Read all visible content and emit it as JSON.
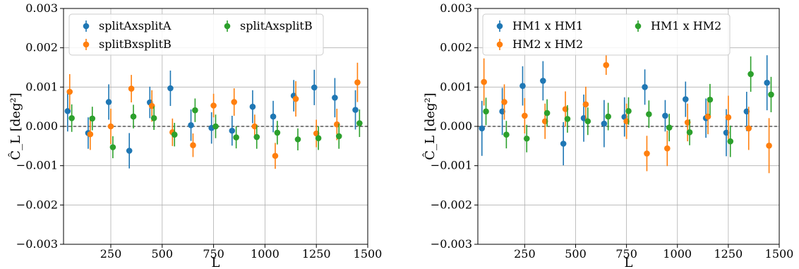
{
  "chart_data": [
    {
      "type": "scatter",
      "title": "",
      "xlabel": "L",
      "ylabel": "Ĉ_L [deg²]",
      "xlim": [
        20,
        1500
      ],
      "ylim": [
        -0.003,
        0.003
      ],
      "grid": true,
      "zero_line": true,
      "x_ticks": [
        250,
        500,
        750,
        1000,
        1250,
        1500
      ],
      "x_tick_labels": [
        "250",
        "500",
        "750",
        "1000",
        "1250",
        "1500"
      ],
      "y_ticks": [
        -0.003,
        -0.002,
        -0.001,
        0.0,
        0.001,
        0.002,
        0.003
      ],
      "y_tick_labels": [
        "−0.003",
        "−0.002",
        "−0.001",
        "0.000",
        "0.001",
        "0.002",
        "0.003"
      ],
      "legend_position": "top-left",
      "series": [
        {
          "name": "splitAxsplitA",
          "color": "#1f77b4",
          "x": [
            40,
            140,
            240,
            340,
            440,
            540,
            640,
            740,
            840,
            940,
            1040,
            1140,
            1240,
            1340,
            1440
          ],
          "y": [
            0.00039,
            -0.00017,
            0.00062,
            -0.00062,
            0.00061,
            0.00097,
            3e-05,
            -4e-05,
            -0.00011,
            0.0005,
            0.00025,
            0.00078,
            0.00099,
            0.00073,
            0.00042
          ],
          "err": [
            0.00052,
            0.0004,
            0.00045,
            0.00045,
            0.0004,
            0.00045,
            0.0004,
            0.0004,
            0.00038,
            0.00042,
            0.0004,
            0.0004,
            0.00045,
            0.0005,
            0.0005
          ]
        },
        {
          "name": "splitBxsplitB",
          "color": "#ff7f0e",
          "x": [
            50,
            150,
            250,
            350,
            450,
            550,
            650,
            750,
            850,
            950,
            1050,
            1150,
            1250,
            1350,
            1450
          ],
          "y": [
            0.00088,
            -0.0002,
            0.0,
            0.00096,
            0.00052,
            -0.00015,
            -0.00048,
            0.00053,
            0.00062,
            0.0,
            -0.00075,
            0.0007,
            -0.00018,
            5e-05,
            0.00112
          ],
          "err": [
            0.00045,
            0.0004,
            0.00045,
            0.00035,
            0.0004,
            0.00035,
            0.0003,
            0.0003,
            0.00035,
            0.0003,
            0.00033,
            0.00045,
            0.00035,
            0.0004,
            0.0005
          ]
        },
        {
          "name": "splitAxsplitB",
          "color": "#2ca02c",
          "x": [
            60,
            160,
            260,
            360,
            460,
            560,
            660,
            760,
            860,
            960,
            1060,
            1160,
            1260,
            1360,
            1460
          ],
          "y": [
            0.00021,
            0.0002,
            -0.00053,
            0.00025,
            0.00021,
            -0.00021,
            0.00041,
            0.0,
            -0.00028,
            -0.00027,
            -0.00016,
            -0.00033,
            -0.0003,
            -0.00025,
            8e-05
          ],
          "err": [
            0.00035,
            0.0003,
            0.00028,
            0.0003,
            0.0003,
            0.0003,
            0.0003,
            0.0003,
            0.00028,
            0.0003,
            0.0003,
            0.00028,
            0.0003,
            0.00032,
            0.00035
          ]
        }
      ]
    },
    {
      "type": "scatter",
      "title": "",
      "xlabel": "L",
      "ylabel": "Ĉ_L [deg²]",
      "xlim": [
        20,
        1500
      ],
      "ylim": [
        -0.003,
        0.003
      ],
      "grid": true,
      "zero_line": true,
      "x_ticks": [
        250,
        500,
        750,
        1000,
        1250,
        1500
      ],
      "x_tick_labels": [
        "250",
        "500",
        "750",
        "1000",
        "1250",
        "1500"
      ],
      "y_ticks": [
        -0.003,
        -0.002,
        -0.001,
        0.0,
        0.001,
        0.002,
        0.003
      ],
      "y_tick_labels": [
        "−0.003",
        "−0.002",
        "−0.001",
        "0.000",
        "0.001",
        "0.002",
        "0.003"
      ],
      "legend_position": "top-left",
      "series": [
        {
          "name": "HM1 x HM1",
          "color": "#1f77b4",
          "x": [
            40,
            140,
            240,
            340,
            440,
            540,
            640,
            740,
            840,
            940,
            1040,
            1140,
            1240,
            1340,
            1440
          ],
          "y": [
            -5e-05,
            0.00038,
            0.00103,
            0.00116,
            -0.00044,
            0.00021,
            7e-05,
            0.00024,
            0.001,
            0.00027,
            0.00069,
            0.00021,
            -0.00016,
            0.00038,
            0.00111
          ],
          "err": [
            0.0007,
            0.0006,
            0.0005,
            0.0005,
            0.00055,
            0.0006,
            0.0006,
            0.0005,
            0.00045,
            0.0004,
            0.00045,
            0.0005,
            0.0006,
            0.0005,
            0.0007
          ]
        },
        {
          "name": "HM2 x HM2",
          "color": "#ff7f0e",
          "x": [
            50,
            150,
            250,
            350,
            450,
            550,
            650,
            750,
            850,
            950,
            1050,
            1150,
            1250,
            1350,
            1450
          ],
          "y": [
            0.00113,
            0.00062,
            0.00027,
            0.00013,
            0.00044,
            0.00056,
            0.00156,
            0.00013,
            -0.00069,
            -0.00056,
            0.0001,
            0.00025,
            0.00023,
            -5e-05,
            -0.00049
          ],
          "err": [
            0.0006,
            0.00045,
            0.00045,
            0.00045,
            0.00045,
            0.00045,
            0.00025,
            0.00045,
            0.00045,
            0.00045,
            0.00048,
            0.00045,
            0.00055,
            0.00055,
            0.0007
          ]
        },
        {
          "name": "HM1 x HM2",
          "color": "#2ca02c",
          "x": [
            60,
            160,
            260,
            360,
            460,
            560,
            660,
            760,
            860,
            960,
            1060,
            1160,
            1260,
            1360,
            1460
          ],
          "y": [
            0.00038,
            -0.00021,
            -0.00031,
            0.00034,
            0.00019,
            0.00013,
            0.00025,
            0.00039,
            0.00031,
            -3e-05,
            -0.00015,
            0.00068,
            -0.00038,
            0.00133,
            0.00081
          ],
          "err": [
            0.00035,
            0.00035,
            0.00035,
            0.00035,
            0.00035,
            0.00035,
            0.00035,
            0.00035,
            0.00035,
            0.00035,
            0.00033,
            0.0004,
            0.0004,
            0.00045,
            0.00045
          ]
        }
      ]
    }
  ]
}
